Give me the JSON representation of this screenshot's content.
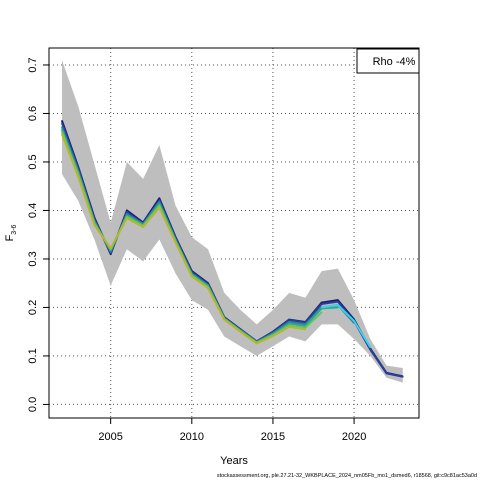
{
  "chart_data": {
    "type": "line",
    "title": "",
    "xlabel": "Years",
    "ylabel": "F",
    "ylabel_sub": "3-6",
    "xlim": [
      2001.2,
      2024.0
    ],
    "ylim": [
      -0.028,
      0.735
    ],
    "x_ticks": [
      2005,
      2010,
      2015,
      2020
    ],
    "y_ticks": [
      0.0,
      0.1,
      0.2,
      0.3,
      0.4,
      0.5,
      0.6,
      0.7
    ],
    "grid": true,
    "legend_position": "top-right",
    "legend_text": "Rho -4%",
    "band": {
      "x": [
        2002,
        2003,
        2004,
        2005,
        2006,
        2007,
        2008,
        2009,
        2010,
        2011,
        2012,
        2013,
        2014,
        2015,
        2016,
        2017,
        2018,
        2019,
        2020,
        2021,
        2022,
        2023
      ],
      "lower": [
        0.475,
        0.42,
        0.34,
        0.245,
        0.32,
        0.295,
        0.34,
        0.27,
        0.215,
        0.195,
        0.14,
        0.12,
        0.1,
        0.12,
        0.14,
        0.13,
        0.165,
        0.165,
        0.135,
        0.1,
        0.055,
        0.045
      ],
      "upper": [
        0.71,
        0.615,
        0.495,
        0.375,
        0.5,
        0.465,
        0.535,
        0.41,
        0.345,
        0.32,
        0.23,
        0.195,
        0.165,
        0.195,
        0.23,
        0.22,
        0.275,
        0.28,
        0.215,
        0.135,
        0.08,
        0.075
      ]
    },
    "series": [
      {
        "color": "#1a1a6e",
        "x": [
          2002,
          2003,
          2004,
          2005,
          2006,
          2007,
          2008,
          2009,
          2010,
          2011,
          2012,
          2013,
          2014,
          2015,
          2016,
          2017,
          2018,
          2019,
          2020,
          2021,
          2022,
          2023
        ],
        "values": [
          0.585,
          0.49,
          0.385,
          0.31,
          0.4,
          0.375,
          0.425,
          0.345,
          0.275,
          0.25,
          0.18,
          0.155,
          0.13,
          0.15,
          0.175,
          0.17,
          0.21,
          0.215,
          0.175,
          0.115,
          0.065,
          0.058
        ]
      },
      {
        "color": "#2a3f9c",
        "x": [
          2002,
          2003,
          2004,
          2005,
          2006,
          2007,
          2008,
          2009,
          2010,
          2011,
          2012,
          2013,
          2014,
          2015,
          2016,
          2017,
          2018,
          2019,
          2020,
          2021,
          2022,
          2023
        ],
        "values": [
          0.58,
          0.487,
          0.382,
          0.312,
          0.397,
          0.373,
          0.421,
          0.343,
          0.273,
          0.248,
          0.179,
          0.154,
          0.13,
          0.149,
          0.174,
          0.169,
          0.207,
          0.212,
          0.172,
          0.113,
          0.064,
          0.057
        ]
      },
      {
        "color": "#2d7fa0",
        "x": [
          2002,
          2003,
          2004,
          2005,
          2006,
          2007,
          2008,
          2009,
          2010,
          2011,
          2012,
          2013,
          2014,
          2015,
          2016,
          2017,
          2018,
          2019,
          2020
        ],
        "values": [
          0.572,
          0.482,
          0.378,
          0.315,
          0.393,
          0.372,
          0.418,
          0.34,
          0.27,
          0.246,
          0.178,
          0.153,
          0.129,
          0.147,
          0.17,
          0.165,
          0.2,
          0.205,
          0.168
        ]
      },
      {
        "color": "#2fa88a",
        "x": [
          2002,
          2003,
          2004,
          2005,
          2006,
          2007,
          2008,
          2009,
          2010,
          2011,
          2012,
          2013,
          2014,
          2015,
          2016,
          2017,
          2018,
          2019
        ],
        "values": [
          0.567,
          0.478,
          0.376,
          0.318,
          0.39,
          0.37,
          0.414,
          0.338,
          0.268,
          0.244,
          0.177,
          0.152,
          0.128,
          0.145,
          0.167,
          0.162,
          0.198,
          0.2
        ]
      },
      {
        "color": "#5ec962",
        "x": [
          2002,
          2003,
          2004,
          2005,
          2006,
          2007,
          2008,
          2009,
          2010,
          2011,
          2012,
          2013,
          2014,
          2015,
          2016,
          2017,
          2018
        ],
        "values": [
          0.562,
          0.474,
          0.373,
          0.32,
          0.387,
          0.368,
          0.41,
          0.336,
          0.266,
          0.242,
          0.176,
          0.151,
          0.127,
          0.143,
          0.163,
          0.158,
          0.19
        ]
      },
      {
        "color": "#b5b72a",
        "x": [
          2002,
          2003,
          2004,
          2005,
          2006,
          2007,
          2008,
          2009,
          2010,
          2011,
          2012,
          2013,
          2014,
          2015,
          2016,
          2017
        ],
        "values": [
          0.557,
          0.47,
          0.37,
          0.322,
          0.384,
          0.366,
          0.406,
          0.334,
          0.264,
          0.24,
          0.175,
          0.15,
          0.126,
          0.141,
          0.16,
          0.155
        ]
      },
      {
        "color": "#3ad0e8",
        "x": [
          2018,
          2019,
          2020,
          2021
        ],
        "values": [
          0.2,
          0.205,
          0.172,
          0.118
        ]
      }
    ]
  },
  "footer": "stockassessment.org, ple.27.21-32_WKBPLACE_2024_nm05Fb_mo1_dsmed6, r18568, git:c9c81ac53a0d"
}
